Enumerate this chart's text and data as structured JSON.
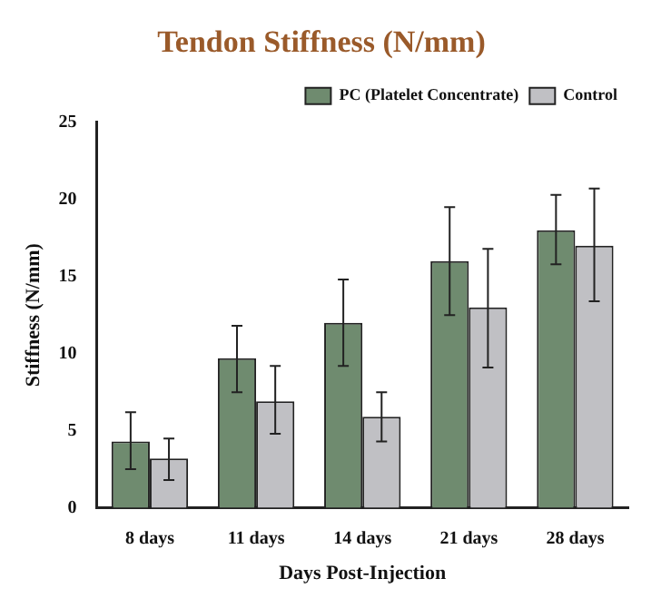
{
  "chart_data": {
    "type": "bar",
    "title": "Tendon Stiffness (N/mm)",
    "xlabel": "Days Post-Injection",
    "ylabel": "Stiffness (N/mm)",
    "categories": [
      "8 days",
      "11 days",
      "14 days",
      "21 days",
      "28 days"
    ],
    "series": [
      {
        "name": "PC (Platelet Concentrate)",
        "color": "#6f8b6f",
        "values": [
          4.3,
          9.7,
          12,
          16,
          18
        ],
        "errors": [
          [
            2.5,
            6.2
          ],
          [
            7.5,
            11.8
          ],
          [
            9.2,
            14.8
          ],
          [
            12.5,
            19.5
          ],
          [
            15.8,
            20.3
          ]
        ]
      },
      {
        "name": "Control",
        "color": "#c0c0c4",
        "values": [
          3.2,
          6.9,
          5.9,
          13,
          17
        ],
        "errors": [
          [
            1.8,
            4.5
          ],
          [
            4.8,
            9.2
          ],
          [
            4.3,
            7.5
          ],
          [
            9.1,
            16.8
          ],
          [
            13.4,
            20.7
          ]
        ]
      }
    ],
    "ylim": [
      0,
      25
    ],
    "yticks": [
      0,
      5,
      10,
      15,
      20,
      25
    ],
    "grid": false,
    "legend": "top right"
  }
}
